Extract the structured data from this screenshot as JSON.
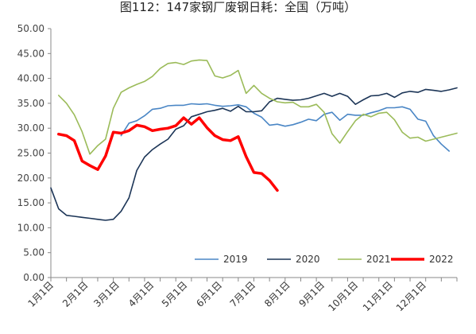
{
  "title": "图112：147家钢厂废钢日耗：全国（万吨）",
  "colors": {
    "2019": "#4a86c5",
    "2020": "#1c3557",
    "2021": "#9bbb59",
    "2022": "#ff0000"
  },
  "chart_data": {
    "type": "line",
    "title": "图112：147家钢厂废钢日耗：全国（万吨）",
    "xlabel": "",
    "ylabel": "",
    "ylim": [
      0,
      50
    ],
    "yticks": [
      "0.00",
      "5.00",
      "10.00",
      "15.00",
      "20.00",
      "25.00",
      "30.00",
      "35.00",
      "40.00",
      "45.00",
      "50.00"
    ],
    "xticks": [
      "1月1日",
      "2月1日",
      "3月1日",
      "4月1日",
      "5月1日",
      "6月1日",
      "7月1日",
      "8月1日",
      "9月1日",
      "10月1日",
      "11月1日",
      "12月1日"
    ],
    "x_unit": "week of year (1 = Jan 1)",
    "grid": false,
    "legend_position": "bottom-right-inside",
    "series": [
      {
        "name": "2019",
        "x": [
          10,
          11,
          12,
          13,
          14,
          15,
          16,
          17,
          18,
          19,
          20,
          21,
          22,
          23,
          24,
          25,
          26,
          27,
          28,
          29,
          30,
          31,
          32,
          33,
          34,
          35,
          36,
          37,
          38,
          39,
          40,
          41,
          42,
          43,
          44,
          45,
          46,
          47,
          48,
          49,
          50,
          51,
          52
        ],
        "values": [
          28.5,
          31.0,
          31.5,
          32.5,
          33.8,
          34.0,
          34.5,
          34.6,
          34.6,
          34.9,
          34.8,
          34.9,
          34.6,
          34.4,
          34.5,
          34.7,
          34.3,
          33.0,
          32.2,
          30.6,
          30.8,
          30.4,
          30.7,
          31.2,
          31.8,
          31.5,
          32.8,
          33.2,
          31.6,
          32.8,
          32.6,
          32.6,
          33.1,
          33.5,
          34.1,
          34.1,
          34.3,
          33.8,
          31.8,
          31.4,
          28.5,
          26.8,
          25.4
        ]
      },
      {
        "name": "2020",
        "x": [
          1,
          2,
          3,
          4,
          5,
          6,
          7,
          8,
          9,
          10,
          11,
          12,
          13,
          14,
          15,
          16,
          17,
          18,
          19,
          20,
          21,
          22,
          23,
          24,
          25,
          26,
          27,
          28,
          29,
          30,
          31,
          32,
          33,
          34,
          35,
          36,
          37,
          38,
          39,
          40,
          41,
          42,
          43,
          44,
          45,
          46,
          47,
          48,
          49,
          50,
          51,
          52,
          53
        ],
        "values": [
          18.0,
          13.8,
          12.5,
          12.3,
          12.1,
          11.9,
          11.7,
          11.5,
          11.7,
          13.3,
          16.0,
          21.5,
          24.2,
          25.7,
          26.8,
          27.8,
          29.8,
          30.5,
          32.3,
          32.8,
          33.3,
          33.6,
          34.0,
          33.4,
          34.4,
          33.3,
          33.3,
          33.5,
          35.3,
          36.0,
          35.8,
          35.6,
          35.7,
          36.0,
          36.5,
          37.0,
          36.4,
          37.0,
          36.4,
          34.8,
          35.7,
          36.5,
          36.6,
          37.0,
          36.2,
          37.1,
          37.4,
          37.2,
          37.8,
          37.6,
          37.4,
          37.7,
          38.1
        ]
      },
      {
        "name": "2021",
        "x": [
          2,
          3,
          4,
          5,
          6,
          7,
          8,
          9,
          10,
          11,
          12,
          13,
          14,
          15,
          16,
          17,
          18,
          19,
          20,
          21,
          22,
          23,
          24,
          25,
          26,
          27,
          28,
          29,
          30,
          31,
          32,
          33,
          34,
          35,
          36,
          37,
          38,
          39,
          40,
          41,
          42,
          43,
          44,
          45,
          46,
          47,
          48,
          49,
          50,
          51,
          52,
          53
        ],
        "values": [
          36.6,
          35.0,
          32.7,
          29.3,
          24.8,
          26.5,
          27.8,
          34.0,
          37.2,
          38.1,
          38.8,
          39.4,
          40.4,
          42.0,
          43.0,
          43.2,
          42.8,
          43.5,
          43.7,
          43.6,
          40.5,
          40.1,
          40.6,
          41.6,
          37.0,
          38.6,
          37.0,
          36.0,
          35.3,
          35.1,
          35.2,
          34.3,
          34.3,
          34.8,
          33.2,
          28.9,
          27.0,
          29.3,
          31.5,
          32.8,
          32.3,
          33.0,
          33.2,
          31.7,
          29.2,
          28.0,
          28.2,
          27.4,
          27.8,
          28.2,
          28.6,
          29.0
        ]
      },
      {
        "name": "2022",
        "x": [
          2,
          3,
          4,
          5,
          6,
          7,
          8,
          9,
          10,
          11,
          12,
          13,
          14,
          15,
          16,
          17,
          18,
          19,
          20,
          21,
          22,
          23,
          24,
          25,
          26,
          27,
          28,
          29,
          30
        ],
        "values": [
          28.8,
          28.5,
          27.5,
          23.4,
          22.5,
          21.7,
          24.4,
          29.2,
          29.0,
          29.5,
          30.6,
          30.3,
          29.5,
          29.8,
          30.0,
          30.5,
          32.1,
          30.8,
          32.1,
          30.1,
          28.5,
          27.7,
          27.5,
          28.3,
          24.3,
          21.1,
          20.9,
          19.5,
          17.5
        ]
      }
    ]
  }
}
